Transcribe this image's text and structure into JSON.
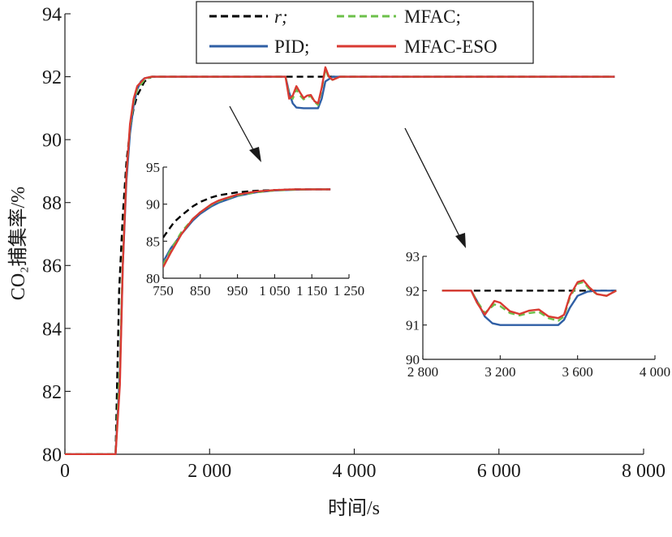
{
  "chart_data": [
    {
      "id": "main",
      "type": "line",
      "xlabel": "时间/s",
      "ylabel": "CO₂捕集率/%",
      "xlim": [
        0,
        8000
      ],
      "ylim": [
        80,
        94
      ],
      "xticks": [
        0,
        2000,
        4000,
        6000,
        8000
      ],
      "xtick_labels": [
        "0",
        "2 000",
        "4 000",
        "6 000",
        "8 000"
      ],
      "yticks": [
        80,
        82,
        84,
        86,
        88,
        90,
        92,
        94
      ],
      "ytick_labels": [
        "80",
        "82",
        "84",
        "86",
        "88",
        "90",
        "92",
        "94"
      ],
      "grid": false,
      "legend_position": "top-center",
      "series": [
        {
          "name": "r;",
          "color": "#000000",
          "dash": "dashed",
          "x": [
            0,
            700,
            750,
            800,
            850,
            900,
            950,
            1000,
            1100,
            1200,
            3000,
            7600
          ],
          "y": [
            80,
            80,
            85.2,
            87.6,
            89.3,
            90.3,
            91.0,
            91.4,
            91.85,
            92.0,
            92.0,
            92.0
          ]
        },
        {
          "name": "PID;",
          "color": "#2f5fa5",
          "dash": "solid",
          "x": [
            0,
            700,
            760,
            800,
            850,
            900,
            950,
            1000,
            1050,
            1100,
            1200,
            3050,
            3100,
            3150,
            3200,
            3300,
            3400,
            3500,
            3550,
            3600,
            3700,
            3800,
            7600
          ],
          "y": [
            80,
            80,
            82.6,
            86.0,
            88.7,
            90.2,
            91.1,
            91.6,
            91.85,
            91.95,
            92.0,
            92.0,
            91.5,
            91.15,
            91.02,
            91.0,
            91.0,
            91.0,
            91.3,
            91.85,
            92.0,
            92.0,
            92.0
          ]
        },
        {
          "name": "MFAC;",
          "color": "#6cc04a",
          "dash": "dashed",
          "x": [
            0,
            700,
            760,
            800,
            850,
            900,
            950,
            1000,
            1100,
            1200,
            3050,
            3100,
            3150,
            3200,
            3250,
            3300,
            3350,
            3400,
            3450,
            3500,
            3550,
            3600,
            3650,
            3700,
            3800,
            7600
          ],
          "y": [
            80,
            80,
            82.8,
            86.3,
            88.9,
            90.4,
            91.2,
            91.6,
            91.9,
            92.0,
            92.0,
            91.4,
            91.3,
            91.6,
            91.4,
            91.28,
            91.35,
            91.38,
            91.2,
            91.1,
            91.6,
            92.25,
            91.95,
            91.9,
            92.0,
            92.0
          ]
        },
        {
          "name": "MFAC-ESO",
          "color": "#d93a32",
          "dash": "solid",
          "x": [
            0,
            700,
            760,
            800,
            850,
            900,
            950,
            1000,
            1100,
            1200,
            3050,
            3100,
            3150,
            3200,
            3250,
            3300,
            3350,
            3400,
            3450,
            3500,
            3550,
            3600,
            3650,
            3700,
            3800,
            7600
          ],
          "y": [
            80,
            80,
            82.2,
            86.0,
            88.9,
            90.5,
            91.3,
            91.7,
            91.95,
            92.0,
            92.0,
            91.3,
            91.4,
            91.7,
            91.5,
            91.32,
            91.4,
            91.42,
            91.22,
            91.15,
            91.65,
            92.3,
            92.0,
            91.9,
            92.0,
            92.0
          ]
        }
      ]
    },
    {
      "id": "inset-left",
      "type": "line",
      "xlim": [
        750,
        1250
      ],
      "ylim": [
        80,
        95
      ],
      "xticks": [
        750,
        850,
        950,
        1050,
        1150,
        1250
      ],
      "xtick_labels": [
        "750",
        "850",
        "950",
        "1 050",
        "1 150",
        "1 250"
      ],
      "yticks": [
        80,
        85,
        90,
        95
      ],
      "ytick_labels": [
        "80",
        "85",
        "90",
        "95"
      ],
      "series": [
        {
          "name": "r;",
          "color": "#000000",
          "dash": "dashed",
          "x": [
            750,
            780,
            800,
            830,
            850,
            880,
            900,
            950,
            1000,
            1050,
            1100,
            1150,
            1200
          ],
          "y": [
            85.5,
            87.6,
            88.5,
            89.7,
            90.3,
            90.9,
            91.2,
            91.6,
            91.8,
            91.9,
            92.0,
            92.0,
            92.0
          ]
        },
        {
          "name": "PID;",
          "color": "#2f5fa5",
          "dash": "solid",
          "x": [
            750,
            770,
            800,
            830,
            850,
            880,
            900,
            950,
            1000,
            1050,
            1100,
            1150,
            1200
          ],
          "y": [
            82.2,
            84.0,
            86.0,
            87.8,
            88.7,
            89.7,
            90.2,
            91.1,
            91.6,
            91.85,
            91.95,
            92.0,
            92.0
          ]
        },
        {
          "name": "MFAC;",
          "color": "#6cc04a",
          "dash": "dashed",
          "x": [
            750,
            770,
            800,
            830,
            850,
            880,
            900,
            950,
            1000,
            1050,
            1100,
            1150,
            1200
          ],
          "y": [
            81.8,
            83.8,
            86.3,
            88.0,
            88.9,
            89.9,
            90.4,
            91.2,
            91.6,
            91.85,
            91.95,
            92.0,
            92.0
          ]
        },
        {
          "name": "MFAC-ESO",
          "color": "#d93a32",
          "dash": "solid",
          "x": [
            750,
            770,
            800,
            830,
            850,
            880,
            900,
            950,
            1000,
            1050,
            1100,
            1150,
            1200
          ],
          "y": [
            81.5,
            83.4,
            86.0,
            88.0,
            88.9,
            90.0,
            90.5,
            91.3,
            91.7,
            91.9,
            92.0,
            92.0,
            92.0
          ]
        }
      ]
    },
    {
      "id": "inset-right",
      "type": "line",
      "xlim": [
        2800,
        4000
      ],
      "ylim": [
        90,
        93
      ],
      "xticks": [
        2800,
        3200,
        3600,
        4000
      ],
      "xtick_labels": [
        "2 800",
        "3 200",
        "3 600",
        "4 000"
      ],
      "yticks": [
        90,
        91,
        92,
        93
      ],
      "ytick_labels": [
        "90",
        "91",
        "92",
        "93"
      ],
      "series": [
        {
          "name": "r;",
          "color": "#000000",
          "dash": "dashed",
          "x": [
            2900,
            3800
          ],
          "y": [
            92.0,
            92.0
          ]
        },
        {
          "name": "PID;",
          "color": "#2f5fa5",
          "dash": "solid",
          "x": [
            2900,
            3050,
            3080,
            3120,
            3160,
            3200,
            3300,
            3400,
            3500,
            3530,
            3560,
            3600,
            3650,
            3700,
            3800
          ],
          "y": [
            92.0,
            92.0,
            91.7,
            91.25,
            91.05,
            91.0,
            91.0,
            91.0,
            91.0,
            91.15,
            91.5,
            91.85,
            91.97,
            92.0,
            92.0
          ]
        },
        {
          "name": "MFAC;",
          "color": "#6cc04a",
          "dash": "dashed",
          "x": [
            2900,
            3050,
            3080,
            3120,
            3170,
            3200,
            3250,
            3300,
            3350,
            3400,
            3450,
            3500,
            3530,
            3560,
            3600,
            3630,
            3660,
            3700,
            3750,
            3800
          ],
          "y": [
            92.0,
            92.0,
            91.7,
            91.35,
            91.6,
            91.55,
            91.35,
            91.28,
            91.35,
            91.38,
            91.2,
            91.12,
            91.25,
            91.8,
            92.2,
            92.25,
            92.05,
            91.9,
            91.85,
            92.0
          ]
        },
        {
          "name": "MFAC-ESO",
          "color": "#d93a32",
          "dash": "solid",
          "x": [
            2900,
            3050,
            3080,
            3120,
            3170,
            3200,
            3250,
            3300,
            3350,
            3400,
            3450,
            3500,
            3530,
            3560,
            3600,
            3630,
            3660,
            3700,
            3750,
            3800
          ],
          "y": [
            92.0,
            92.0,
            91.65,
            91.3,
            91.7,
            91.65,
            91.4,
            91.32,
            91.42,
            91.45,
            91.25,
            91.2,
            91.3,
            91.85,
            92.25,
            92.3,
            92.1,
            91.9,
            91.85,
            92.0
          ]
        }
      ]
    }
  ]
}
